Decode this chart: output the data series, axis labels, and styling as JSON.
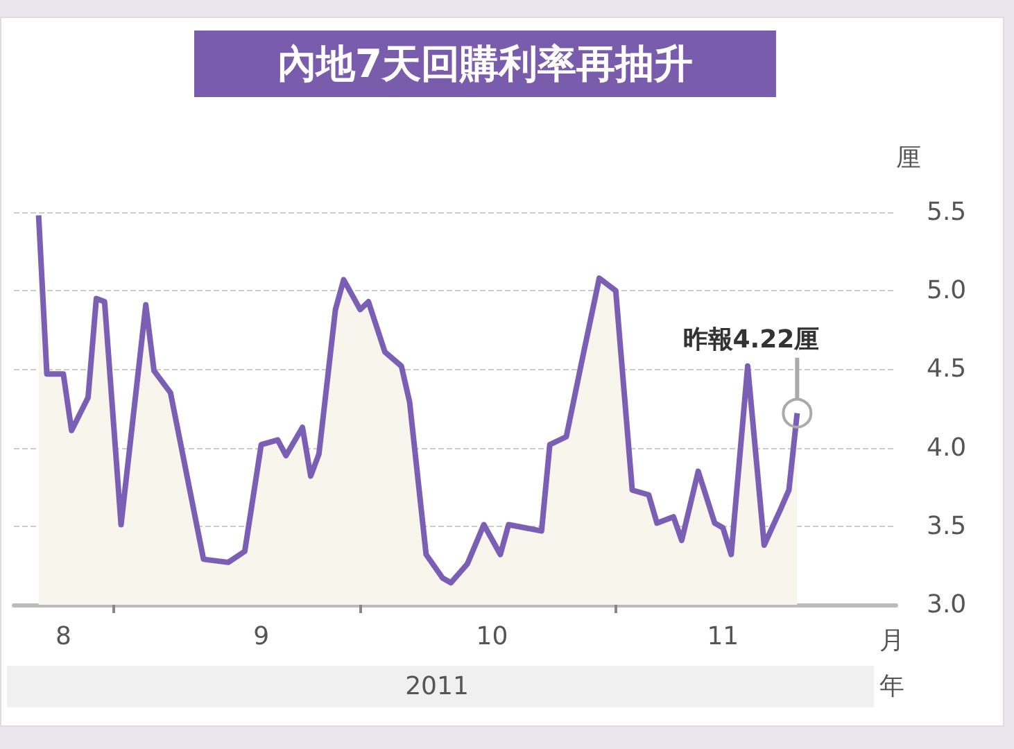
{
  "chart_data": {
    "type": "area",
    "title": "內地7天回購利率再抽升",
    "xlabel": "月",
    "ylabel": "厘",
    "x": [
      "2011-08-23",
      "2011-08-24",
      "2011-08-26",
      "2011-08-27",
      "2011-08-29",
      "2011-08-30",
      "2011-08-31",
      "2011-09-02",
      "2011-09-05",
      "2011-09-06",
      "2011-09-08",
      "2011-09-12",
      "2011-09-15",
      "2011-09-17",
      "2011-09-19",
      "2011-09-21",
      "2011-09-22",
      "2011-09-24",
      "2011-09-25",
      "2011-09-26",
      "2011-09-28",
      "2011-09-29",
      "2011-10-01",
      "2011-10-02",
      "2011-10-04",
      "2011-10-06",
      "2011-10-07",
      "2011-10-09",
      "2011-10-11",
      "2011-10-12",
      "2011-10-14",
      "2011-10-16",
      "2011-10-18",
      "2011-10-19",
      "2011-10-23",
      "2011-10-24",
      "2011-10-26",
      "2011-10-28",
      "2011-10-30",
      "2011-11-01",
      "2011-11-03",
      "2011-11-05",
      "2011-11-06",
      "2011-11-08",
      "2011-11-09",
      "2011-11-11",
      "2011-11-13",
      "2011-11-14",
      "2011-11-15",
      "2011-11-17",
      "2011-11-19",
      "2011-11-21",
      "2011-11-22",
      "2011-11-23"
    ],
    "series": [
      {
        "color": "#7b5fb5",
        "values": [
          5.48,
          4.47,
          4.47,
          4.11,
          4.32,
          4.95,
          4.93,
          3.51,
          4.91,
          4.49,
          4.35,
          3.29,
          3.27,
          3.34,
          4.02,
          4.05,
          3.95,
          4.13,
          3.82,
          3.96,
          4.88,
          5.07,
          4.88,
          4.93,
          4.61,
          4.52,
          4.29,
          3.32,
          3.17,
          3.14,
          3.26,
          3.51,
          3.32,
          3.51,
          3.47,
          4.02,
          4.07,
          4.58,
          5.08,
          5.0,
          3.73,
          3.7,
          3.52,
          3.56,
          3.41,
          3.85,
          3.52,
          3.49,
          3.32,
          4.52,
          3.38,
          3.61,
          3.73,
          4.22
        ]
      }
    ],
    "xlim": [
      "2011-08-20",
      "2011-12-05"
    ],
    "xticks": [
      {
        "value": "2011-08-26",
        "label": "8"
      },
      {
        "value": "2011-09-01",
        "label": null
      },
      {
        "value": "2011-09-19",
        "label": "9"
      },
      {
        "value": "2011-10-01",
        "label": null
      },
      {
        "value": "2011-10-17",
        "label": "10"
      },
      {
        "value": "2011-11-01",
        "label": null
      },
      {
        "value": "2011-11-14",
        "label": "11"
      }
    ],
    "ylim": [
      3.0,
      5.5
    ],
    "yticks": [
      {
        "value": 3.0,
        "label": "3.0"
      },
      3.5,
      {
        "value": 4.0,
        "label": "4.0"
      },
      4.5,
      {
        "value": 5.0,
        "label": "5.0"
      },
      5.5
    ],
    "grid": "y",
    "marker": "none",
    "line_style": "solid",
    "annotations": [
      {
        "text": "昨報4.22厘",
        "x": "2011-11-23",
        "y": 4.22
      },
      "2011",
      "年"
    ]
  }
}
